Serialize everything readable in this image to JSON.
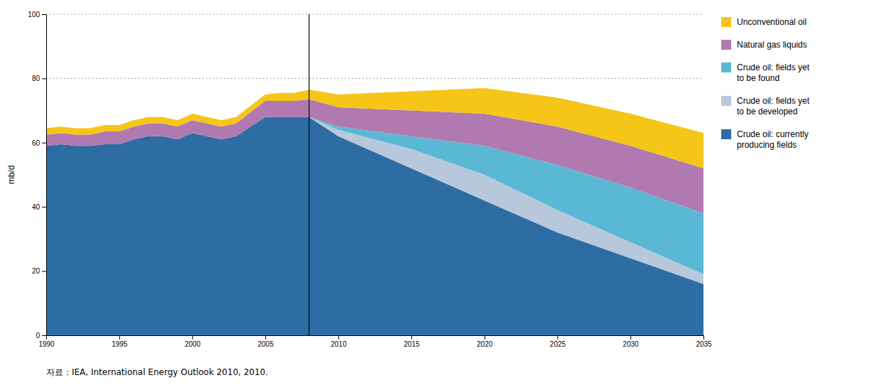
{
  "chart_data": {
    "type": "area",
    "stacked": true,
    "ylabel": "mb/d",
    "footnote": "자료：IEA, International Energy Outlook 2010, 2010.",
    "x": [
      1990,
      1991,
      1992,
      1993,
      1994,
      1995,
      1996,
      1997,
      1998,
      1999,
      2000,
      2001,
      2002,
      2003,
      2004,
      2005,
      2006,
      2007,
      2008,
      2010,
      2015,
      2020,
      2025,
      2030,
      2035
    ],
    "series": [
      {
        "name": "Crude oil: currently\nproducing fields",
        "color": "#2E6DA4",
        "values": [
          59,
          59.5,
          59,
          59,
          59.5,
          59.5,
          61,
          62,
          62,
          61,
          63,
          62,
          61,
          62,
          65,
          68,
          68,
          68,
          68,
          62,
          52,
          42,
          32,
          24,
          16
        ]
      },
      {
        "name": "Crude oil: fields yet\nto be developed",
        "color": "#B8C8DC",
        "values": [
          null,
          null,
          null,
          null,
          null,
          null,
          null,
          null,
          null,
          null,
          null,
          null,
          null,
          null,
          null,
          null,
          null,
          null,
          0,
          2,
          6,
          8,
          7,
          5,
          3
        ]
      },
      {
        "name": "Crude oil: fields yet\nto be found",
        "color": "#5BB8D4",
        "values": [
          null,
          null,
          null,
          null,
          null,
          null,
          null,
          null,
          null,
          null,
          null,
          null,
          null,
          null,
          null,
          null,
          null,
          null,
          0,
          1,
          4,
          9,
          14,
          17,
          19
        ]
      },
      {
        "name": "Natural gas liquids",
        "color": "#B07AB0",
        "values": [
          3.5,
          3.5,
          3.5,
          3.5,
          4,
          4,
          4,
          4,
          4,
          4,
          4,
          4,
          4,
          4,
          4.5,
          5,
          5,
          5,
          5.5,
          6,
          8,
          10,
          12,
          13,
          14
        ]
      },
      {
        "name": "Unconventional oil",
        "color": "#F5C518",
        "values": [
          2,
          2,
          2,
          2,
          2,
          2,
          2,
          2,
          2,
          2,
          2,
          2,
          2,
          2,
          2,
          2,
          2.5,
          2.5,
          3,
          4,
          6,
          8,
          9,
          10,
          11
        ]
      }
    ],
    "vlines": [
      2008
    ],
    "hlines": [
      80,
      100
    ],
    "xlim": [
      1990,
      2035
    ],
    "xticks": [
      1990,
      1995,
      2000,
      2005,
      2010,
      2015,
      2020,
      2025,
      2030,
      2035
    ],
    "ylim": [
      0,
      100
    ],
    "yticks": [
      0,
      20,
      40,
      60,
      80,
      100
    ],
    "grid": false,
    "legend": "right"
  }
}
